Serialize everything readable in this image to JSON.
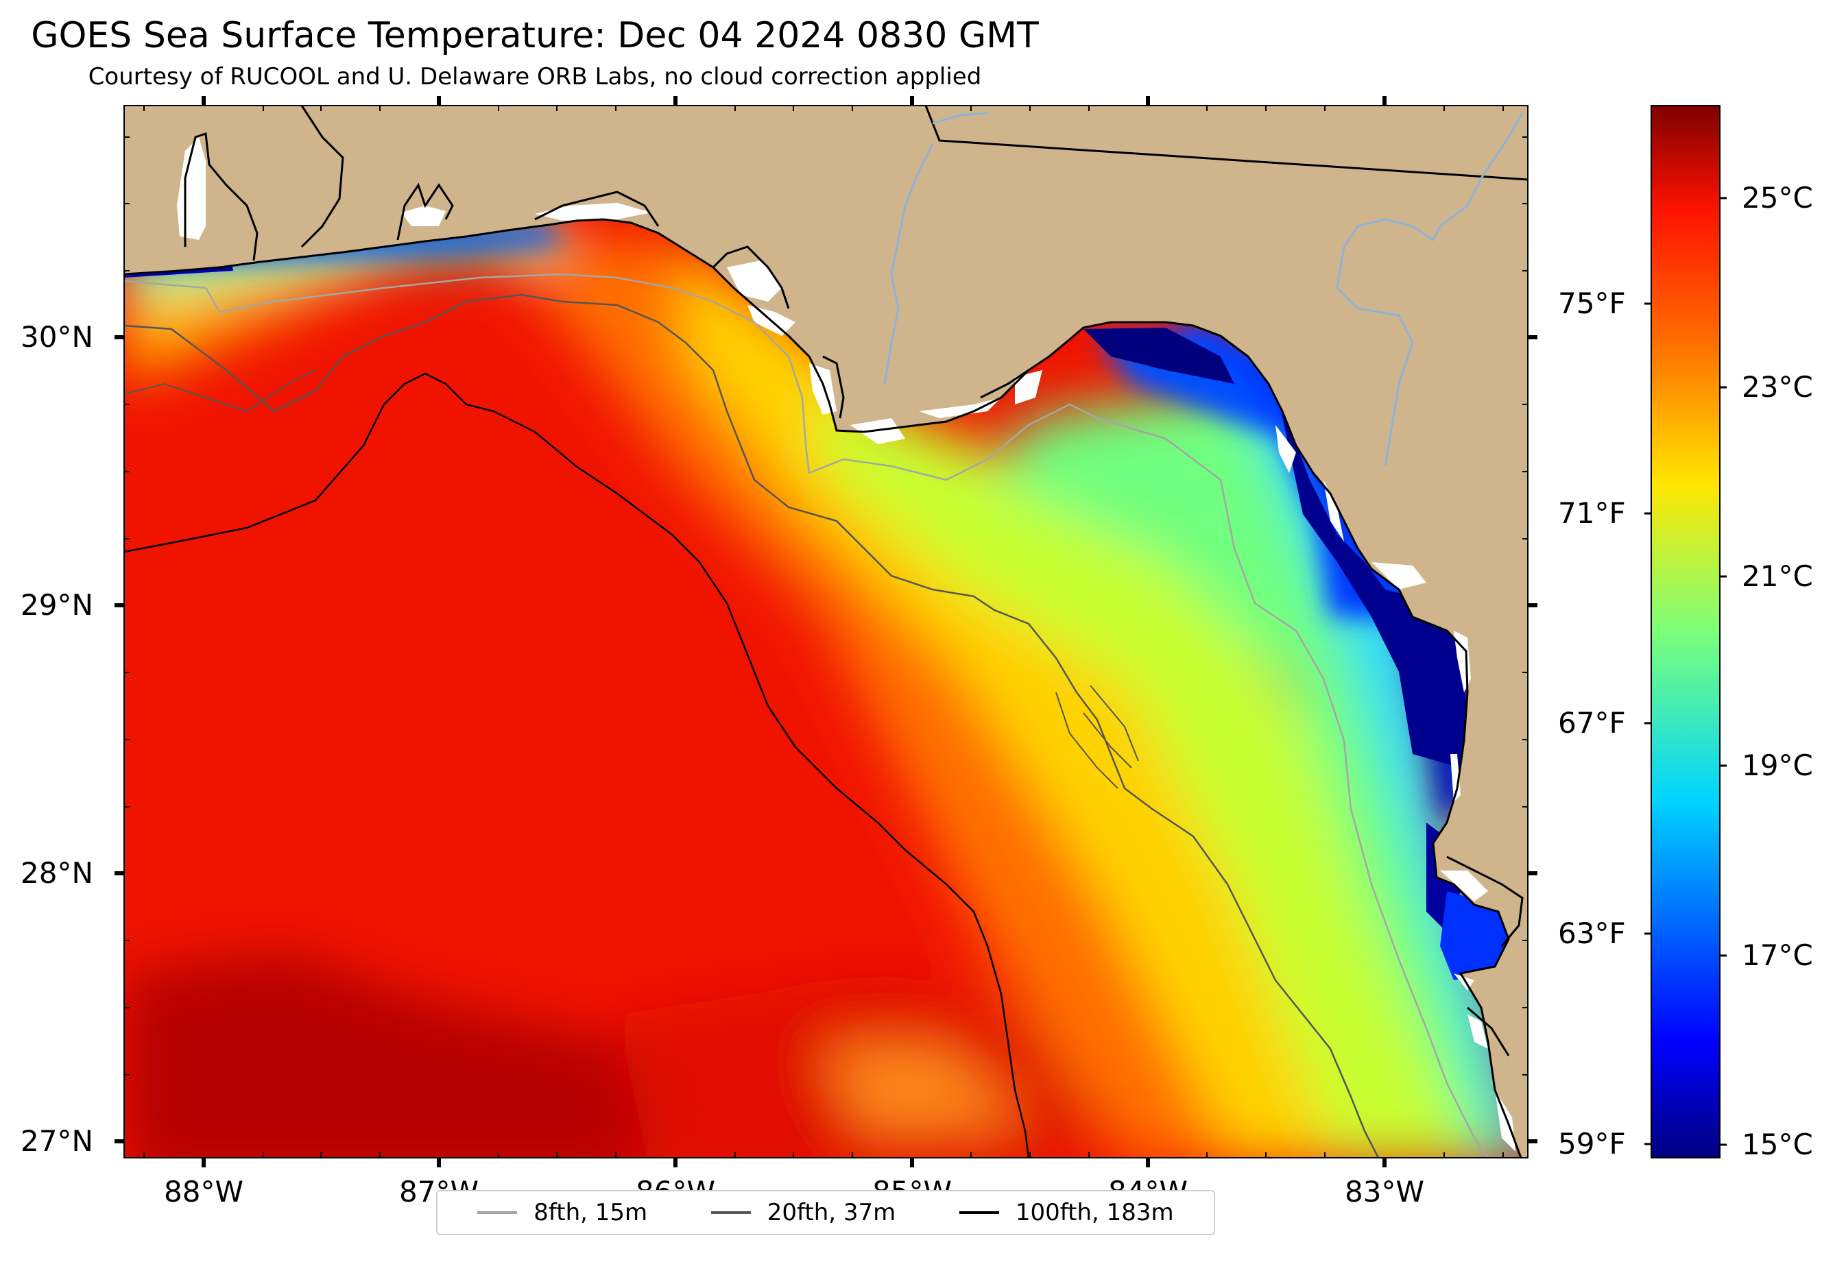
{
  "title": "GOES Sea Surface Temperature: Dec 04 2024 0830 GMT",
  "subtitle": "Courtesy of RUCOOL and U. Delaware ORB Labs, no cloud correction applied",
  "map": {
    "lat_labels": [
      "30°N",
      "29°N",
      "28°N",
      "27°N"
    ],
    "lon_labels": [
      "88°W",
      "87°W",
      "86°W",
      "85°W",
      "84°W",
      "83°W"
    ],
    "colors": {
      "land": "#d0b48c",
      "coast": "#000000",
      "river": "#8fb3d8",
      "missing": "#ffffff"
    }
  },
  "colorbar": {
    "fahrenheit_labels": [
      "75°F",
      "71°F",
      "67°F",
      "63°F",
      "59°F"
    ],
    "celsius_labels": [
      "25°C",
      "23°C",
      "21°C",
      "19°C",
      "17°C",
      "15°C"
    ],
    "colormap": "jet"
  },
  "legend": {
    "items": [
      {
        "label": "8fth, 15m",
        "color": "#a6a6a6"
      },
      {
        "label": "20fth, 37m",
        "color": "#555555"
      },
      {
        "label": "100fth, 183m",
        "color": "#000000"
      }
    ]
  }
}
